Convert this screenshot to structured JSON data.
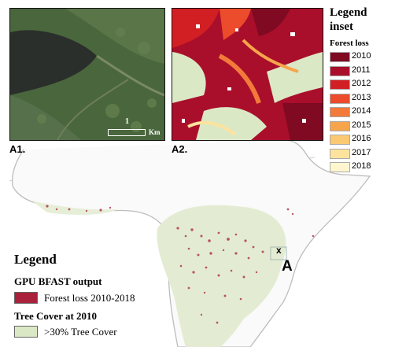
{
  "panels": {
    "a1": {
      "label": "A1.",
      "scale_value": "1",
      "scale_unit": "Km"
    },
    "a2": {
      "label": "A2."
    }
  },
  "map": {
    "site_marker": "x",
    "site_label": "A"
  },
  "main_legend": {
    "title": "Legend",
    "section1": "GPU BFAST output",
    "item1": "Forest loss 2010-2018",
    "section2": "Tree Cover at 2010",
    "item2": ">30% Tree Cover",
    "forest_loss_color": "#a9213a",
    "tree_cover_color": "#dbe8c6"
  },
  "inset_legend": {
    "title_line1": "Legend",
    "title_line2": "inset",
    "subtitle": "Forest loss",
    "years": [
      {
        "year": "2010",
        "color": "#7f0a22"
      },
      {
        "year": "2011",
        "color": "#a90f2b"
      },
      {
        "year": "2012",
        "color": "#d21f24"
      },
      {
        "year": "2013",
        "color": "#ec4b2c"
      },
      {
        "year": "2014",
        "color": "#f27a3a"
      },
      {
        "year": "2015",
        "color": "#f7a54c"
      },
      {
        "year": "2016",
        "color": "#fbc973"
      },
      {
        "year": "2017",
        "color": "#fde39d"
      },
      {
        "year": "2018",
        "color": "#fff5cf"
      }
    ]
  }
}
